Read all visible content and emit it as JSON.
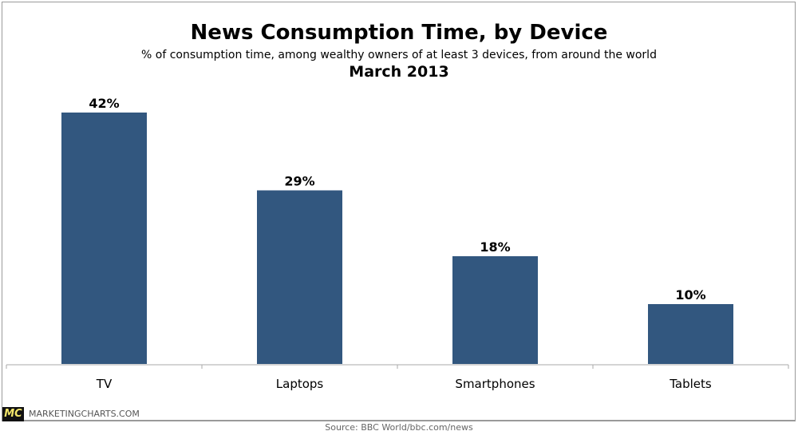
{
  "chart_data": {
    "type": "bar",
    "title": "News Consumption Time, by Device",
    "subtitle": "% of consumption time, among wealthy owners of at least 3 devices, from around the world",
    "date": "March 2013",
    "categories": [
      "TV",
      "Laptops",
      "Smartphones",
      "Tablets"
    ],
    "values": [
      42,
      29,
      18,
      10
    ],
    "data_labels": [
      "42%",
      "29%",
      "18%",
      "10%"
    ],
    "ylim": [
      0,
      42
    ],
    "grid": false,
    "bar_color": "#32577f"
  },
  "footer": {
    "logo": "MC",
    "brand": "MARKETINGCHARTS.COM",
    "source": "Source: BBC World/bbc.com/news"
  }
}
